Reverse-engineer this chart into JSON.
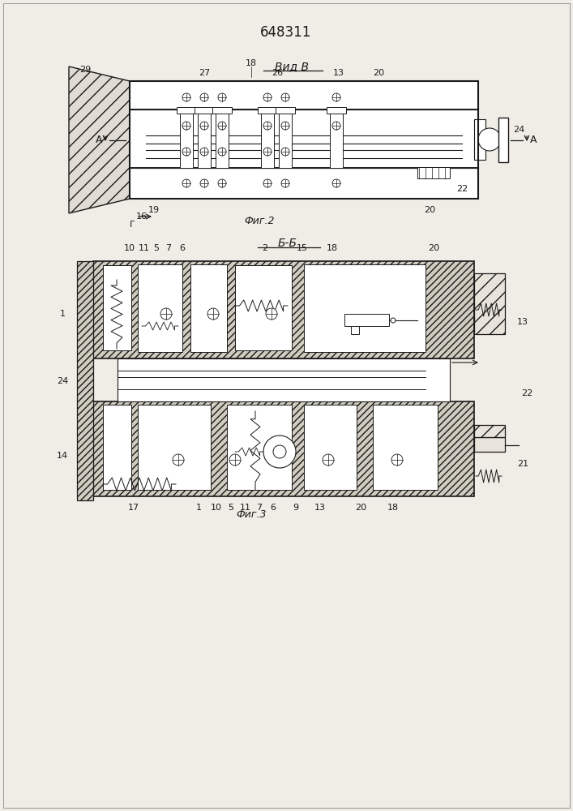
{
  "title": "648311",
  "fig2_label": "Вид В",
  "fig2_caption": "Фиг.2",
  "fig3_label": "Б-Б",
  "fig3_caption": "Фиг.3",
  "bg_color": "#f0ede6",
  "line_color": "#1a1a1a",
  "title_fontsize": 12,
  "label_fontsize": 9,
  "annotation_fontsize": 8
}
